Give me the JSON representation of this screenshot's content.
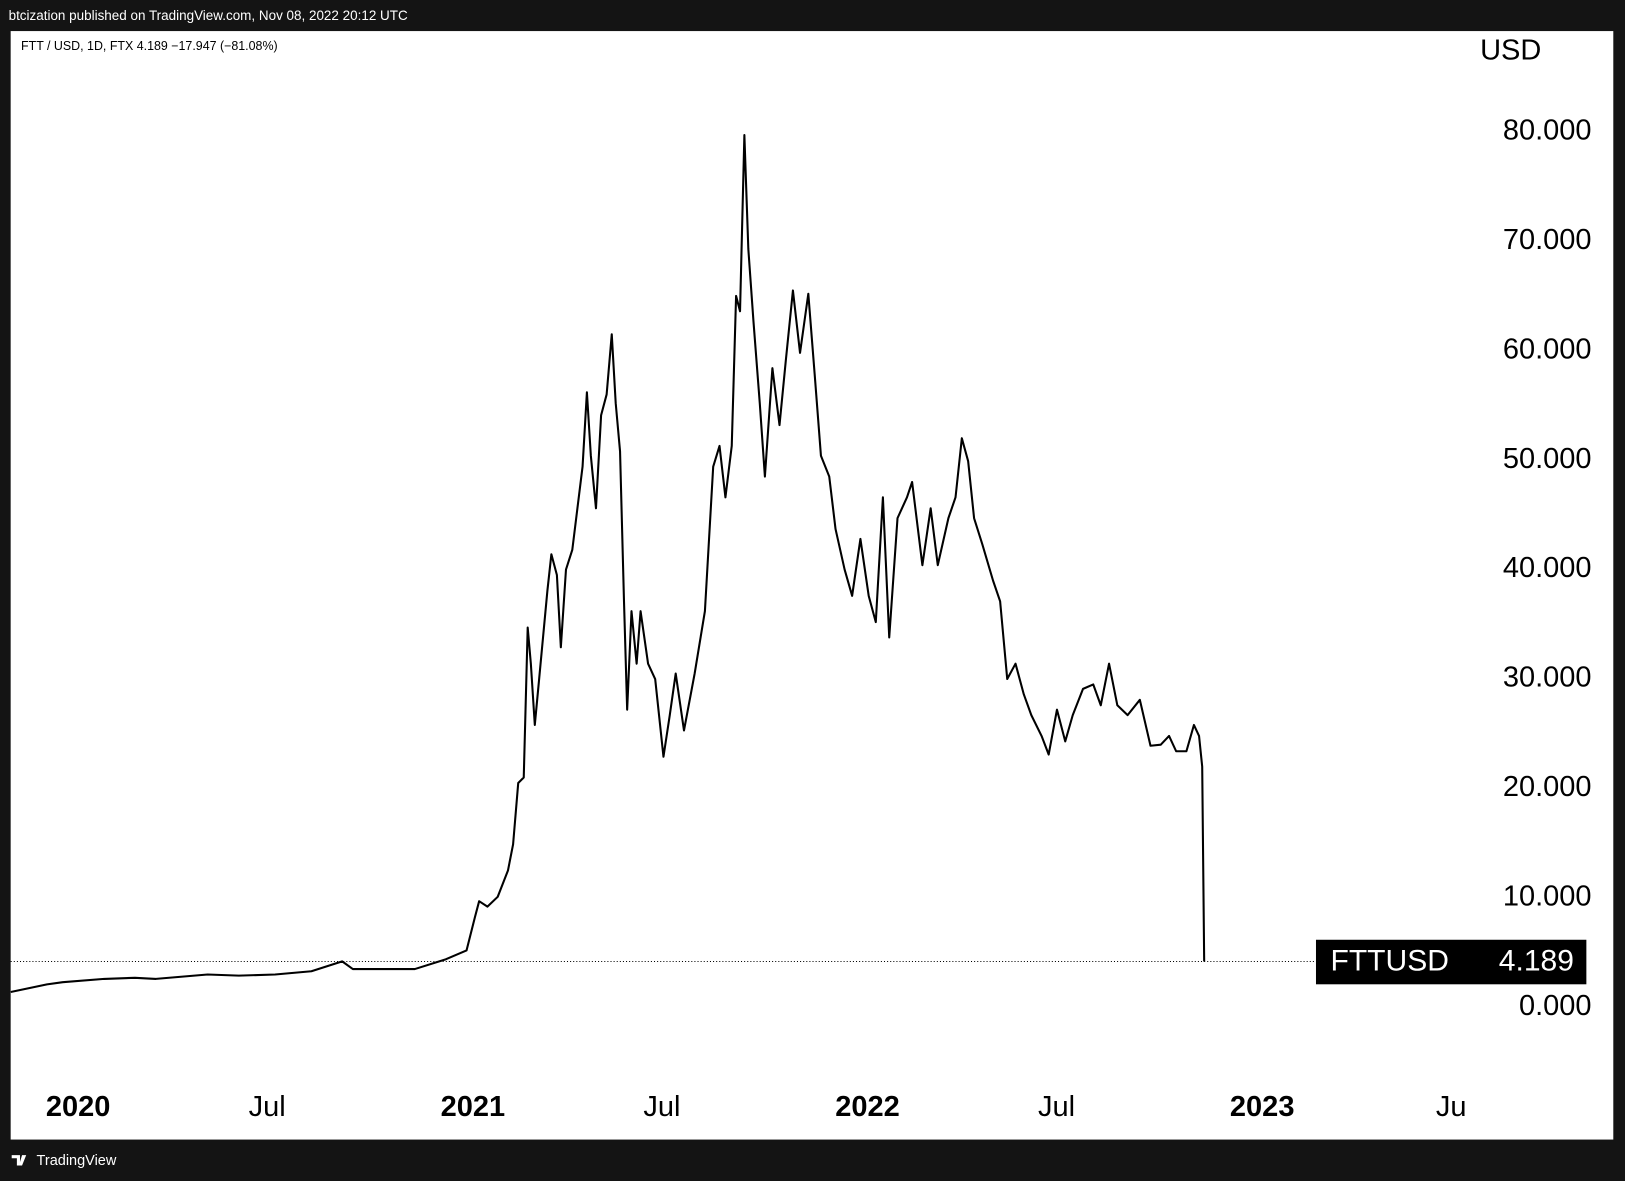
{
  "page": {
    "published": "btcization published on TradingView.com, Nov 08, 2022 20:12 UTC",
    "footer": "TradingView"
  },
  "chart_data": {
    "type": "line",
    "legend_text": "FTT / USD, 1D, FTX  4.189  −17.947 (−81.08%)",
    "y_axis_label": "USD",
    "color": "#000000",
    "grid": false,
    "x": [
      2019.829,
      2019.921,
      2019.961,
      2020.066,
      2020.144,
      2020.197,
      2020.328,
      2020.407,
      2020.499,
      2020.591,
      2020.669,
      2020.696,
      2020.801,
      2020.853,
      2020.932,
      2020.984,
      2021.005,
      2021.016,
      2021.037,
      2021.063,
      2021.089,
      2021.102,
      2021.115,
      2021.129,
      2021.139,
      2021.147,
      2021.157,
      2021.168,
      2021.189,
      2021.199,
      2021.213,
      2021.223,
      2021.236,
      2021.252,
      2021.265,
      2021.278,
      2021.289,
      2021.299,
      2021.312,
      2021.325,
      2021.339,
      2021.352,
      2021.362,
      2021.373,
      2021.383,
      2021.391,
      2021.402,
      2021.415,
      2021.425,
      2021.444,
      2021.462,
      2021.483,
      2021.499,
      2021.514,
      2021.535,
      2021.562,
      2021.588,
      2021.609,
      2021.625,
      2021.64,
      2021.656,
      2021.667,
      2021.677,
      2021.688,
      2021.698,
      2021.711,
      2021.727,
      2021.74,
      2021.759,
      2021.777,
      2021.793,
      2021.811,
      2021.829,
      2021.85,
      2021.866,
      2021.882,
      2021.903,
      2021.919,
      2021.942,
      2021.961,
      2021.982,
      2022.003,
      2022.021,
      2022.039,
      2022.055,
      2022.076,
      2022.1,
      2022.113,
      2022.139,
      2022.16,
      2022.178,
      2022.205,
      2022.223,
      2022.239,
      2022.255,
      2022.27,
      2022.291,
      2022.318,
      2022.336,
      2022.354,
      2022.375,
      2022.396,
      2022.415,
      2022.441,
      2022.459,
      2022.48,
      2022.501,
      2022.52,
      2022.546,
      2022.572,
      2022.591,
      2022.612,
      2022.633,
      2022.659,
      2022.69,
      2022.717,
      2022.743,
      2022.764,
      2022.782,
      2022.808,
      2022.827,
      2022.84,
      2022.848,
      2022.853
    ],
    "values": [
      1.4,
      2.1,
      2.3,
      2.6,
      2.7,
      2.6,
      3.0,
      2.9,
      3.0,
      3.3,
      4.2,
      3.5,
      3.5,
      3.5,
      4.4,
      5.2,
      8.2,
      9.7,
      9.2,
      10.1,
      12.5,
      14.9,
      20.5,
      21.0,
      34.7,
      31.4,
      25.8,
      30.0,
      38.1,
      41.4,
      39.5,
      32.9,
      40.0,
      41.8,
      45.6,
      49.4,
      56.2,
      50.4,
      45.6,
      54.1,
      56.0,
      61.5,
      55.2,
      50.8,
      37.1,
      27.2,
      36.2,
      31.4,
      36.2,
      31.4,
      30.0,
      22.9,
      26.7,
      30.5,
      25.3,
      30.5,
      36.2,
      49.4,
      51.3,
      46.6,
      51.3,
      65.0,
      63.6,
      79.7,
      69.3,
      62.7,
      55.2,
      48.5,
      58.4,
      53.2,
      59.1,
      65.5,
      59.8,
      65.2,
      57.9,
      50.4,
      48.5,
      43.7,
      40.0,
      37.6,
      42.8,
      37.6,
      35.2,
      46.6,
      33.8,
      44.7,
      46.6,
      48.0,
      40.4,
      45.6,
      40.4,
      44.7,
      46.6,
      52.0,
      49.9,
      44.7,
      42.3,
      39.0,
      37.1,
      30.0,
      31.4,
      28.6,
      26.7,
      24.8,
      23.1,
      27.2,
      24.3,
      26.7,
      29.1,
      29.5,
      27.6,
      31.4,
      27.6,
      26.7,
      28.1,
      23.9,
      24.0,
      24.8,
      23.4,
      23.4,
      25.8,
      24.8,
      22.0,
      4.189
    ],
    "price_label": {
      "symbol": "FTTUSD",
      "value": 4.189,
      "label": "4.189"
    },
    "xlim": [
      2019.829,
      2023.53
    ],
    "ylim": [
      -6.4,
      89.2
    ],
    "xticks": [
      2020,
      {
        "value": 2020.5,
        "label": "Jul"
      },
      2021,
      {
        "value": 2021.5,
        "label": "Jul"
      },
      2022,
      {
        "value": 2022.5,
        "label": "Jul"
      },
      2023,
      {
        "value": 2023.5,
        "label": "Ju"
      }
    ],
    "yticks": [
      {
        "value": 0,
        "label": "0.000"
      },
      {
        "value": 10,
        "label": "10.000"
      },
      {
        "value": 20,
        "label": "20.000"
      },
      {
        "value": 30,
        "label": "30.000"
      },
      {
        "value": 40,
        "label": "40.000"
      },
      {
        "value": 50,
        "label": "50.000"
      },
      {
        "value": 60,
        "label": "60.000"
      },
      {
        "value": 70,
        "label": "70.000"
      },
      {
        "value": 80,
        "label": "80.000"
      }
    ]
  }
}
